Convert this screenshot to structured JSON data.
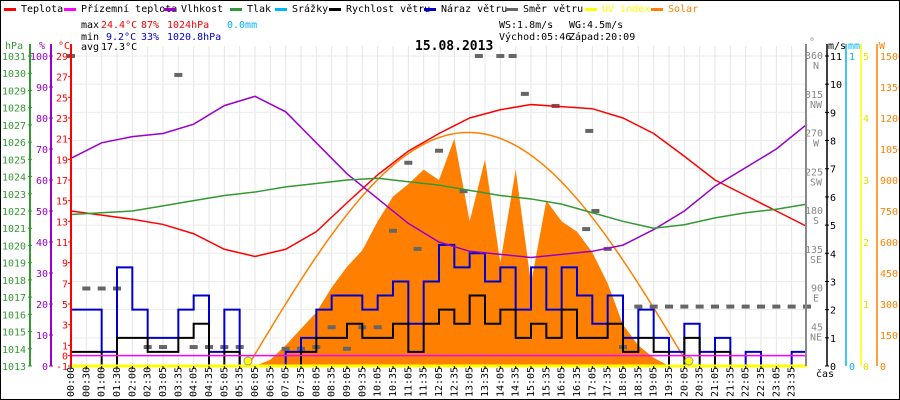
{
  "legend": [
    {
      "label": "Teplota",
      "color": "#ff0000"
    },
    {
      "label": "Přízemní teplota",
      "color": "#ff00ff"
    },
    {
      "label": "Vlhkost",
      "color": "#9900cc"
    },
    {
      "label": "Tlak",
      "color": "#339933"
    },
    {
      "label": "Srážky",
      "color": "#00b4ff"
    },
    {
      "label": "Rychlost větru",
      "color": "#000000"
    },
    {
      "label": "Náraz větru",
      "color": "#0000cc"
    },
    {
      "label": "Směr větru",
      "color": "#666666"
    },
    {
      "label": "UV index",
      "color": "#ffff00"
    },
    {
      "label": "Solar",
      "color": "#ff8000"
    }
  ],
  "stats": {
    "max_label": "max",
    "max_temp": "24.4°C",
    "max_hum": "87%",
    "max_press": "1024hPa",
    "rain": "0.0mm",
    "min_label": "min",
    "min_temp": "9.2°C",
    "min_hum": "33%",
    "min_press": "1020.8hPa",
    "avg_label": "avg",
    "avg_temp": "17.3°C",
    "ws": "WS:1.8m/s",
    "wg": "WG:4.5m/s",
    "sunrise": "Východ:05:46",
    "sunset": "Západ:20:09"
  },
  "chart_data": {
    "type": "line",
    "title": "15.08.2013",
    "xlabel": "čas",
    "x_ticks": [
      "00:00",
      "00:30",
      "01:00",
      "01:30",
      "02:00",
      "02:30",
      "03:05",
      "03:35",
      "04:05",
      "04:35",
      "05:05",
      "05:35",
      "06:05",
      "06:35",
      "07:05",
      "07:35",
      "08:05",
      "08:35",
      "09:05",
      "09:35",
      "10:05",
      "10:35",
      "11:05",
      "11:35",
      "12:05",
      "12:35",
      "13:05",
      "13:35",
      "14:05",
      "14:35",
      "15:05",
      "15:35",
      "16:05",
      "16:35",
      "17:05",
      "17:35",
      "18:05",
      "18:35",
      "19:05",
      "19:35",
      "20:05",
      "20:35",
      "21:05",
      "21:35",
      "22:05",
      "22:35",
      "23:05",
      "23:35"
    ],
    "axes": {
      "pressure": {
        "unit": "hPa",
        "range": [
          1013,
          1031
        ],
        "ticks": [
          1013,
          1014,
          1015,
          1016,
          1017,
          1018,
          1019,
          1020,
          1021,
          1022,
          1023,
          1024,
          1025,
          1026,
          1027,
          1028,
          1029,
          1030,
          1031
        ]
      },
      "humidity": {
        "unit": "%",
        "range": [
          0,
          100
        ],
        "ticks": [
          0,
          10,
          20,
          30,
          40,
          50,
          60,
          70,
          80,
          90,
          100
        ]
      },
      "temperature": {
        "unit": "°C",
        "range": [
          -1,
          29
        ],
        "ticks": [
          -1,
          1,
          3,
          5,
          7,
          9,
          11,
          13,
          15,
          17,
          19,
          21,
          23,
          25,
          27,
          29
        ],
        "extra_ticks": [
          0
        ]
      },
      "direction": {
        "unit": "°",
        "range": [
          0,
          360
        ],
        "ticks": [
          {
            "v": 45,
            "l": "45",
            "c": "NE"
          },
          {
            "v": 90,
            "l": "90",
            "c": "E"
          },
          {
            "v": 135,
            "l": "135",
            "c": "SE"
          },
          {
            "v": 180,
            "l": "180",
            "c": "S"
          },
          {
            "v": 225,
            "l": "225",
            "c": "SW"
          },
          {
            "v": 270,
            "l": "270",
            "c": "W"
          },
          {
            "v": 315,
            "l": "315",
            "c": "NW"
          },
          {
            "v": 360,
            "l": "360",
            "c": "N"
          }
        ]
      },
      "wind": {
        "unit": "m/s",
        "range": [
          0,
          11
        ],
        "ticks": [
          0,
          1,
          2,
          3,
          4,
          5,
          6,
          7,
          8,
          9,
          10,
          11
        ]
      },
      "rain": {
        "unit": "mm",
        "range": [
          0,
          1
        ],
        "ticks": [
          0,
          1
        ]
      },
      "uv": {
        "unit": "",
        "range": [
          0,
          5
        ],
        "ticks": [
          0,
          1,
          2,
          3,
          4,
          5
        ]
      },
      "solar": {
        "unit": "W",
        "range": [
          0,
          1500
        ],
        "ticks": [
          0,
          150,
          300,
          450,
          600,
          750,
          900,
          1050,
          1200,
          1350,
          1500
        ]
      }
    },
    "hours": [
      0,
      1,
      2,
      3,
      4,
      5,
      6,
      7,
      8,
      9,
      10,
      11,
      12,
      13,
      14,
      15,
      16,
      17,
      18,
      19,
      20,
      21,
      22,
      23,
      24
    ],
    "series": [
      {
        "name": "Teplota",
        "axis": "temperature",
        "values": [
          14,
          13.6,
          13.2,
          12.7,
          11.8,
          10.3,
          9.6,
          10.3,
          12,
          14.8,
          17.5,
          19.8,
          21.5,
          23,
          23.8,
          24.3,
          24.1,
          23.9,
          23,
          21.5,
          19.3,
          17,
          15.5,
          14,
          12.5
        ]
      },
      {
        "name": "Přízemní teplota",
        "axis": "temperature",
        "values": [
          0,
          0,
          0,
          0,
          0,
          0,
          0,
          0,
          0,
          0,
          0,
          0,
          0,
          0,
          0,
          0,
          0,
          0,
          0,
          0,
          0,
          0,
          0,
          0,
          0
        ]
      },
      {
        "name": "Vlhkost",
        "axis": "humidity",
        "values": [
          67,
          72,
          74,
          75,
          78,
          84,
          87,
          82,
          72,
          62,
          54,
          46,
          40,
          37,
          36,
          35,
          36,
          37,
          39,
          44,
          50,
          58,
          64,
          70,
          78
        ]
      },
      {
        "name": "Tlak",
        "axis": "pressure",
        "values": [
          1021.8,
          1021.9,
          1022,
          1022.3,
          1022.6,
          1022.9,
          1023.1,
          1023.4,
          1023.6,
          1023.8,
          1023.9,
          1023.7,
          1023.5,
          1023.2,
          1022.9,
          1022.7,
          1022.4,
          1021.9,
          1021.4,
          1021,
          1021.2,
          1021.6,
          1021.9,
          1022.1,
          1022.4
        ]
      }
    ],
    "half_hours": [
      0,
      0.5,
      1,
      1.5,
      2,
      2.5,
      3,
      3.5,
      4,
      4.5,
      5,
      5.5,
      6,
      6.5,
      7,
      7.5,
      8,
      8.5,
      9,
      9.5,
      10,
      10.5,
      11,
      11.5,
      12,
      12.5,
      13,
      13.5,
      14,
      14.5,
      15,
      15.5,
      16,
      16.5,
      17,
      17.5,
      18,
      18.5,
      19,
      19.5,
      20,
      20.5,
      21,
      21.5,
      22,
      22.5,
      23,
      23.5,
      24
    ],
    "wind_gust": [
      2,
      2,
      0.5,
      3.5,
      2,
      1,
      1,
      2,
      2.5,
      0.5,
      2,
      0,
      0,
      0,
      0.5,
      1,
      2,
      2.5,
      2.5,
      2,
      2.5,
      3,
      1.5,
      3,
      4.3,
      3.5,
      4,
      3,
      3.5,
      2,
      3.5,
      2,
      3.5,
      2.5,
      1.5,
      2.5,
      1,
      2,
      1,
      0.5,
      1.5,
      0.5,
      1,
      0,
      0.5,
      0,
      0,
      0.5,
      0.5
    ],
    "wind_speed": [
      0.5,
      0.5,
      0,
      1,
      1,
      0.5,
      0.5,
      1,
      1.5,
      0,
      0.5,
      0,
      0,
      0,
      0,
      0.5,
      1,
      1,
      1.5,
      1,
      1,
      1.5,
      0.5,
      1.5,
      2,
      1.5,
      2.5,
      1.5,
      2,
      1,
      1.5,
      1,
      2,
      1,
      1,
      1.5,
      0.5,
      1,
      0.5,
      0,
      1,
      0,
      0.5,
      0,
      0,
      0,
      0,
      0,
      0
    ],
    "wind_direction": [
      [
        0,
        360
      ],
      [
        0.5,
        90
      ],
      [
        1,
        90
      ],
      [
        1.5,
        90
      ],
      [
        2.5,
        22
      ],
      [
        3,
        22
      ],
      [
        3.5,
        338
      ],
      [
        4,
        22
      ],
      [
        4.5,
        22
      ],
      [
        5,
        22
      ],
      [
        5.5,
        22
      ],
      [
        7,
        20
      ],
      [
        7.5,
        20
      ],
      [
        8,
        22
      ],
      [
        8.5,
        45
      ],
      [
        9,
        20
      ],
      [
        9.5,
        45
      ],
      [
        10,
        45
      ],
      [
        10.5,
        157
      ],
      [
        11,
        236
      ],
      [
        11.3,
        136
      ],
      [
        12,
        250
      ],
      [
        12.8,
        203
      ],
      [
        13.3,
        360
      ],
      [
        14,
        360
      ],
      [
        14.4,
        360
      ],
      [
        14.8,
        316
      ],
      [
        15.8,
        302
      ],
      [
        16.8,
        159
      ],
      [
        16.9,
        273
      ],
      [
        17.1,
        180
      ],
      [
        17.5,
        136
      ],
      [
        18,
        22
      ],
      [
        18.5,
        69
      ],
      [
        19,
        69
      ],
      [
        19.5,
        69
      ],
      [
        20,
        69
      ],
      [
        20.5,
        69
      ],
      [
        21,
        69
      ],
      [
        21.5,
        69
      ],
      [
        22,
        69
      ],
      [
        22.5,
        69
      ],
      [
        23,
        69
      ],
      [
        23.5,
        69
      ],
      [
        24,
        69
      ]
    ],
    "solar_measured": [
      0,
      0,
      0,
      0,
      0,
      0,
      0,
      0,
      0,
      0,
      0,
      0,
      0,
      30,
      100,
      180,
      260,
      380,
      480,
      560,
      700,
      820,
      880,
      950,
      900,
      1100,
      700,
      1000,
      500,
      950,
      400,
      800,
      700,
      650,
      550,
      400,
      200,
      100,
      40,
      0,
      0,
      0,
      0,
      0,
      0,
      0,
      0,
      0,
      0
    ],
    "solar_theoretical": {
      "peak": 1130,
      "sunrise_h": 5.77,
      "sunset_h": 20.15
    },
    "uv_index": [
      [
        5.77,
        0
      ],
      [
        20.15,
        0
      ]
    ],
    "rain_mm": 0.0
  }
}
